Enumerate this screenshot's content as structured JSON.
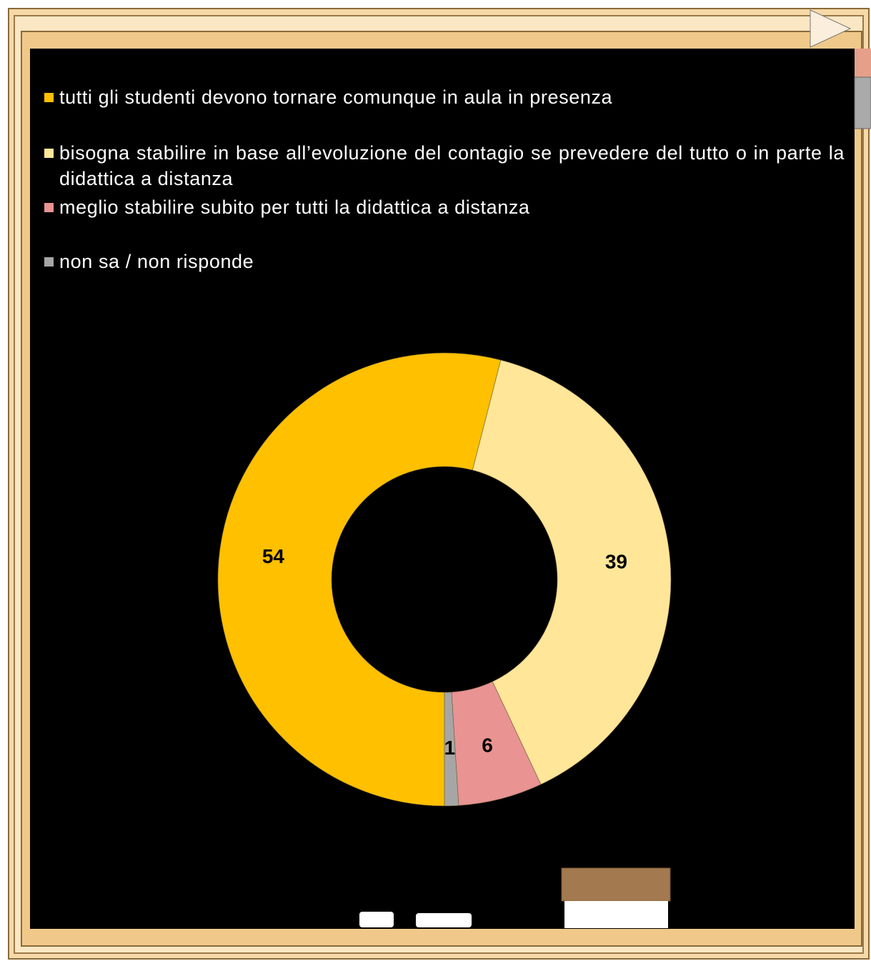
{
  "chart_data": {
    "type": "donut",
    "categories": [
      "tutti gli studenti devono tornare comunque in aula in presenza",
      "bisogna stabilire in base all’evoluzione  del contagio se prevedere  del tutto o in parte la didattica a distanza",
      "meglio stabilire subito per tutti la didattica a distanza",
      "non sa / non risponde"
    ],
    "values": [
      54,
      39,
      6,
      1
    ],
    "colors": [
      "#ffc000",
      "#ffe699",
      "#e99393",
      "#a6a6a6"
    ]
  }
}
